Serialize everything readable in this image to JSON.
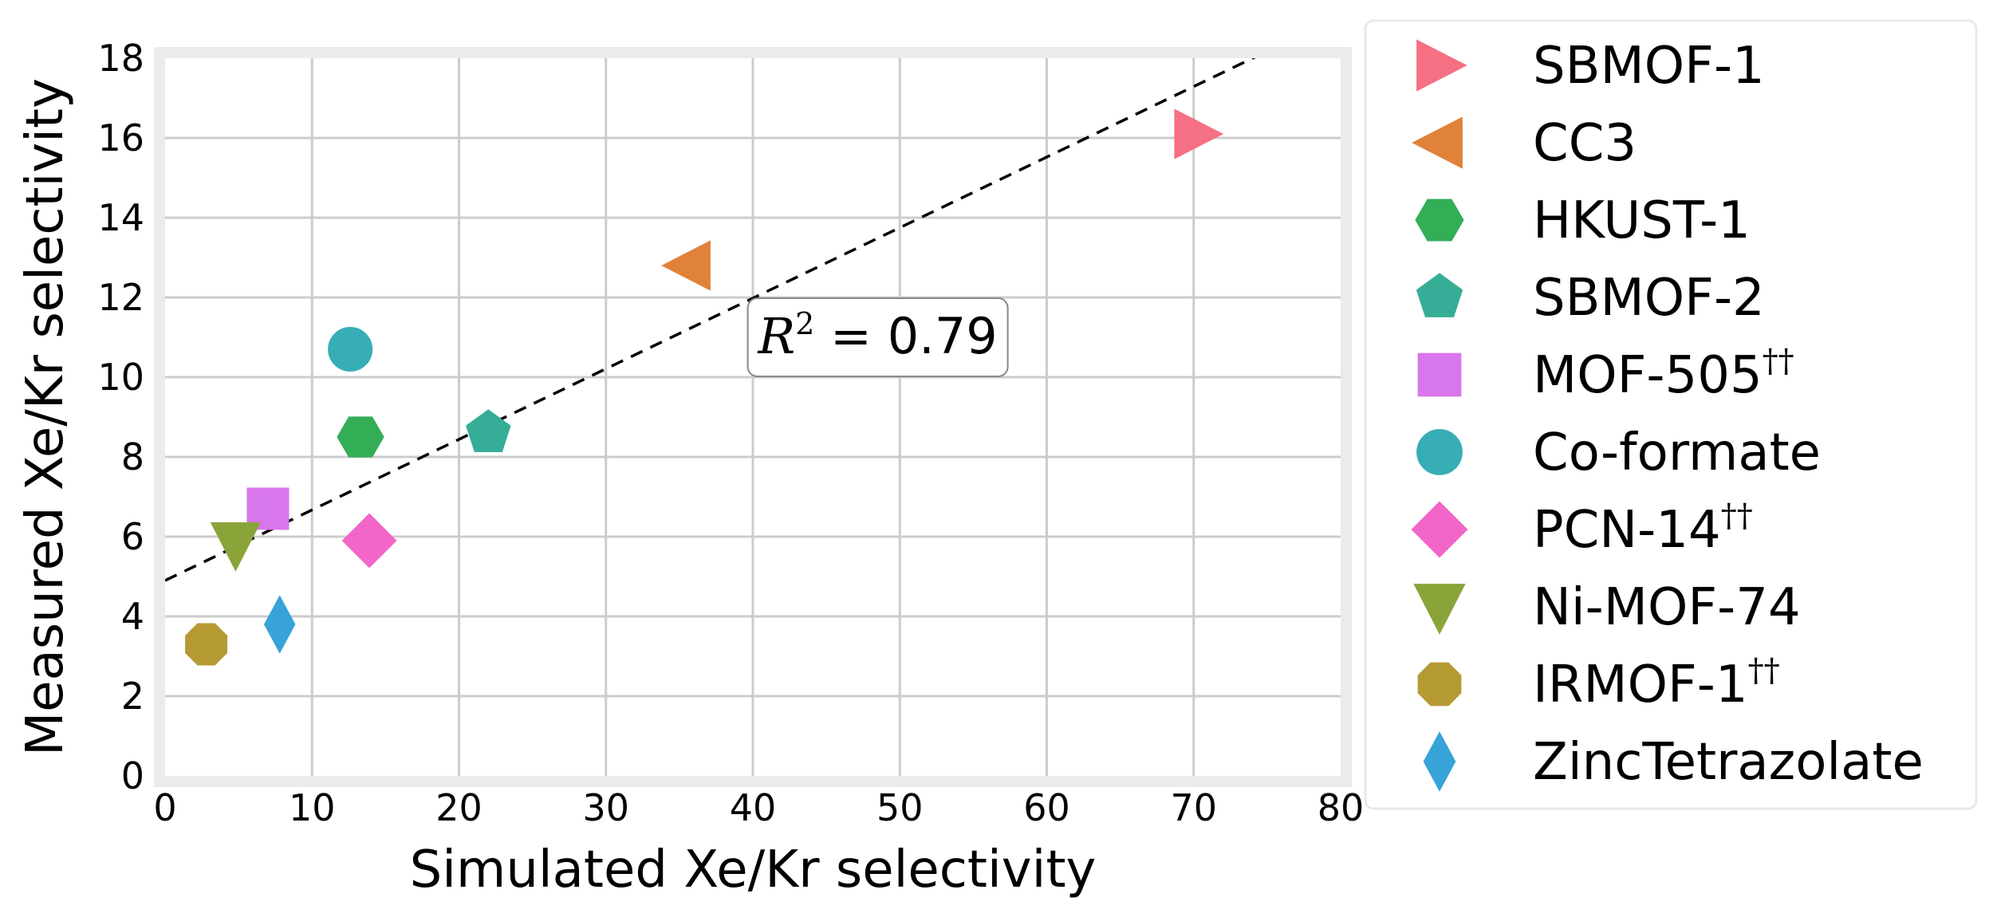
{
  "chart_data": {
    "type": "scatter",
    "xlabel": "Simulated Xe/Kr selectivity",
    "ylabel": "Measured Xe/Kr selectivity",
    "xlim": [
      0,
      80
    ],
    "ylim": [
      0,
      18
    ],
    "xticks": [
      0,
      10,
      20,
      30,
      40,
      50,
      60,
      70,
      80
    ],
    "yticks": [
      0,
      2,
      4,
      6,
      8,
      10,
      12,
      14,
      16,
      18
    ],
    "grid": true,
    "legend_position": "outside-right",
    "series": [
      {
        "name": "SBMOF-1",
        "sup": "",
        "marker": "triangle-right",
        "color": "#f57082",
        "x": 70.2,
        "y": 16.1
      },
      {
        "name": "CC3",
        "sup": "",
        "marker": "triangle-left",
        "color": "#e0823a",
        "x": 35.6,
        "y": 12.8
      },
      {
        "name": "HKUST-1",
        "sup": "",
        "marker": "hexagon",
        "color": "#34ad57",
        "x": 13.3,
        "y": 8.5
      },
      {
        "name": "SBMOF-2",
        "sup": "",
        "marker": "pentagon",
        "color": "#36ad96",
        "x": 22.0,
        "y": 8.6
      },
      {
        "name": "MOF-505",
        "sup": "††",
        "marker": "square",
        "color": "#d876ec",
        "x": 7.0,
        "y": 6.7
      },
      {
        "name": "Co-formate",
        "sup": "",
        "marker": "circle",
        "color": "#37adb6",
        "x": 12.6,
        "y": 10.7
      },
      {
        "name": "PCN-14",
        "sup": "††",
        "marker": "diamond",
        "color": "#f166c8",
        "x": 13.9,
        "y": 5.9
      },
      {
        "name": "Ni-MOF-74",
        "sup": "",
        "marker": "triangle-down",
        "color": "#8aa43a",
        "x": 4.8,
        "y": 5.8
      },
      {
        "name": "IRMOF-1",
        "sup": "††",
        "marker": "octagon",
        "color": "#b59a34",
        "x": 2.8,
        "y": 3.3
      },
      {
        "name": "ZincTetrazolate",
        "sup": "",
        "marker": "thin-diamond",
        "color": "#37a3d8",
        "x": 7.8,
        "y": 3.8
      }
    ],
    "fit_line": {
      "style": "dashed",
      "color": "#000000",
      "intercept": 4.9,
      "slope": 0.177
    },
    "annotation": {
      "r2_label": "R",
      "r2_sup": "2",
      "r2_eq": " = ",
      "r2_value": "0.79",
      "x": 48.5,
      "y": 11.0
    }
  }
}
